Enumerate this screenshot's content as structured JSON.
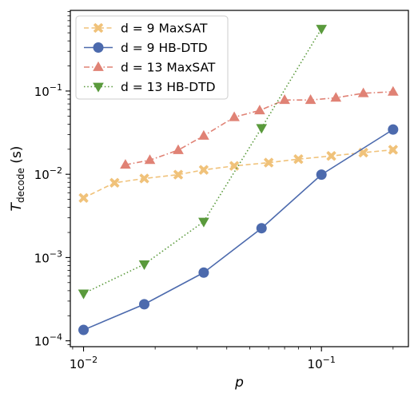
{
  "chart_data": {
    "type": "line",
    "xscale": "log",
    "yscale": "log",
    "xlim": [
      0.0088,
      0.232
    ],
    "ylim": [
      8.5e-05,
      0.93
    ],
    "xlabel": "p",
    "ylabel": "T",
    "ylabel_subscript": "decode",
    "ylabel_suffix": " (s)",
    "legend_position": "upper-left",
    "x_ticks": [
      {
        "value": 0.01,
        "mantissa": "10",
        "exponent": "−2"
      },
      {
        "value": 0.1,
        "mantissa": "10",
        "exponent": "−1"
      }
    ],
    "y_ticks": [
      {
        "value": 0.0001,
        "mantissa": "10",
        "exponent": "−4"
      },
      {
        "value": 0.001,
        "mantissa": "10",
        "exponent": "−3"
      },
      {
        "value": 0.01,
        "mantissa": "10",
        "exponent": "−2"
      },
      {
        "value": 0.1,
        "mantissa": "10",
        "exponent": "−1"
      }
    ],
    "series": [
      {
        "name": "d = 9 MaxSAT",
        "color": "#f0c27a",
        "linestyle": "dashed",
        "marker": "x",
        "x": [
          0.01,
          0.0135,
          0.018,
          0.025,
          0.032,
          0.043,
          0.06,
          0.08,
          0.11,
          0.15,
          0.2
        ],
        "y": [
          0.0052,
          0.0079,
          0.0089,
          0.0099,
          0.0113,
          0.0126,
          0.0138,
          0.0152,
          0.0166,
          0.0182,
          0.0197
        ]
      },
      {
        "name": "d = 9 HB-DTD",
        "color": "#4c6aad",
        "linestyle": "solid",
        "marker": "circle",
        "x": [
          0.01,
          0.018,
          0.032,
          0.056,
          0.1,
          0.2
        ],
        "y": [
          0.000135,
          0.000275,
          0.00066,
          0.00225,
          0.0099,
          0.0345
        ]
      },
      {
        "name": "d = 13 MaxSAT",
        "color": "#e08275",
        "linestyle": "dashdot",
        "marker": "triangle-up",
        "x": [
          0.015,
          0.019,
          0.025,
          0.032,
          0.043,
          0.055,
          0.07,
          0.09,
          0.115,
          0.15,
          0.2
        ],
        "y": [
          0.013,
          0.0148,
          0.0195,
          0.029,
          0.0485,
          0.0585,
          0.078,
          0.078,
          0.083,
          0.094,
          0.098
        ]
      },
      {
        "name": "d = 13 HB-DTD",
        "color": "#5a9a3c",
        "linestyle": "dotted",
        "marker": "triangle-down",
        "x": [
          0.01,
          0.018,
          0.032,
          0.056,
          0.1
        ],
        "y": [
          0.00037,
          0.00083,
          0.0027,
          0.036,
          0.56
        ]
      }
    ]
  }
}
